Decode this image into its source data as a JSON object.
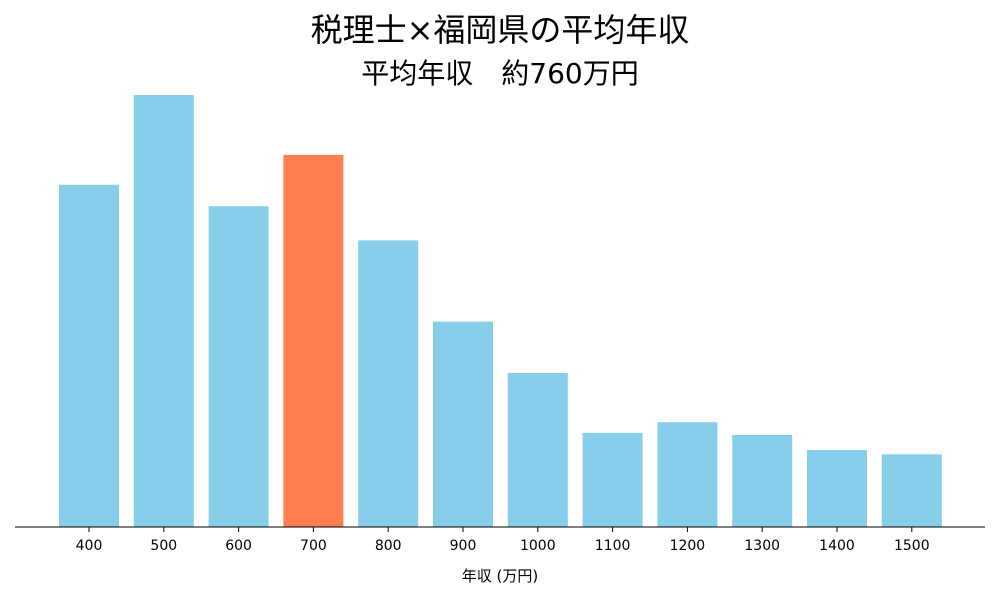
{
  "chart_data": {
    "type": "bar",
    "title": "税理士×福岡県の平均年収",
    "subtitle": "平均年収　約760万円",
    "xlabel": "年収 (万円)",
    "ylabel": "",
    "categories": [
      "400",
      "500",
      "600",
      "700",
      "800",
      "900",
      "1000",
      "1100",
      "1200",
      "1300",
      "1400",
      "1500"
    ],
    "values": [
      80,
      101,
      75,
      87,
      67,
      48,
      36,
      22,
      24.5,
      21.5,
      18,
      17
    ],
    "ylim": [
      0,
      101
    ],
    "highlight_category": "700",
    "grid": false,
    "colors": {
      "bar": "#87ceeb",
      "highlight": "#ff7f50",
      "axis": "#000000"
    }
  }
}
